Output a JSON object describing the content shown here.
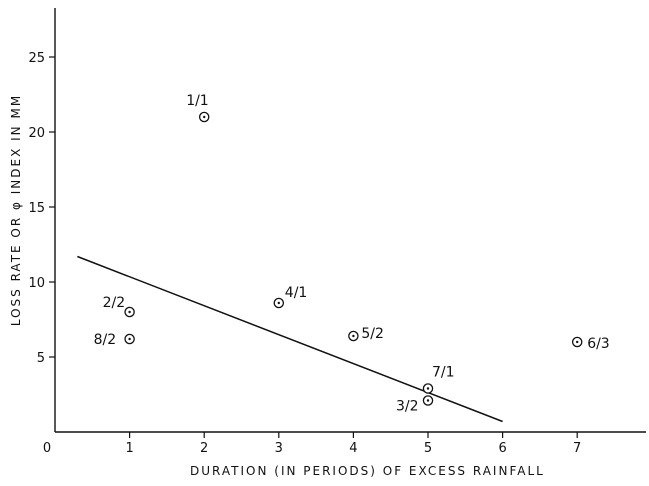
{
  "chart_data": {
    "type": "scatter",
    "title": "",
    "xlabel": "DURATION (IN PERIODS) OF EXCESS RAINFALL",
    "ylabel": "LOSS RATE OR φ INDEX IN MM",
    "xlim": [
      0,
      8
    ],
    "ylim": [
      0,
      28
    ],
    "x_ticks": [
      0,
      1,
      2,
      3,
      4,
      5,
      6,
      7
    ],
    "x_tick_labels": [
      "0",
      "1",
      "2",
      "3",
      "4",
      "5",
      "6",
      "7"
    ],
    "y_ticks": [
      5,
      10,
      15,
      20,
      25
    ],
    "y_tick_labels": [
      "5",
      "10",
      "15",
      "20",
      "25"
    ],
    "grid": false,
    "points": [
      {
        "label": "1/1",
        "x": 2,
        "y": 21
      },
      {
        "label": "2/2",
        "x": 1,
        "y": 8
      },
      {
        "label": "8/2",
        "x": 1,
        "y": 6.2
      },
      {
        "label": "4/1",
        "x": 3,
        "y": 8.6
      },
      {
        "label": "5/2",
        "x": 4,
        "y": 6.4
      },
      {
        "label": "7/1",
        "x": 5,
        "y": 2.9
      },
      {
        "label": "3/2",
        "x": 5,
        "y": 2.1
      },
      {
        "label": "6/3",
        "x": 7,
        "y": 6
      }
    ],
    "trend_line": {
      "x": [
        0.3,
        6
      ],
      "y": [
        11.7,
        0.7
      ]
    }
  }
}
